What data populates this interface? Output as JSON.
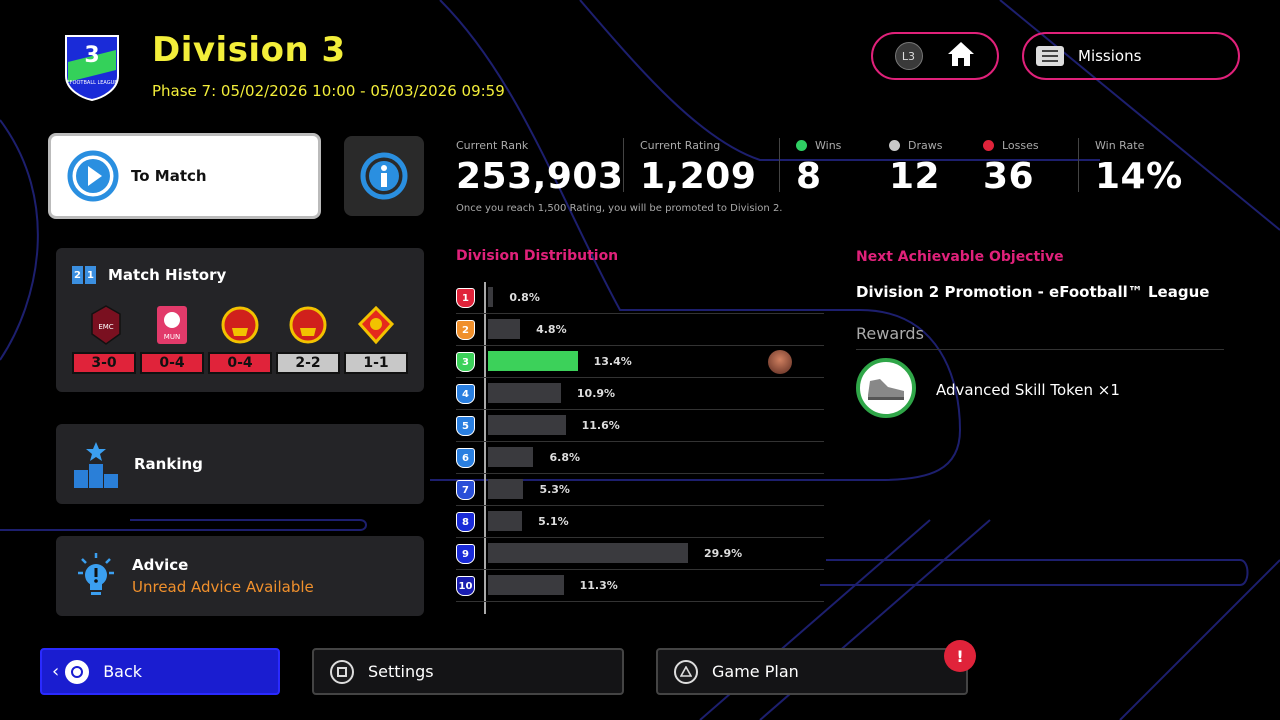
{
  "header": {
    "division": "Division 3",
    "phase": "Phase 7: 05/02/2026 10:00 - 05/03/2026 09:59",
    "logo_number": "3",
    "logo_text": "EFOOTBALL LEAGUE",
    "home_label": "L3",
    "missions_label": "Missions"
  },
  "to_match": {
    "label": "To Match"
  },
  "match_history": {
    "title": "Match History",
    "scores": [
      {
        "score": "3-0",
        "result": "loss"
      },
      {
        "score": "0-4",
        "result": "loss"
      },
      {
        "score": "0-4",
        "result": "loss"
      },
      {
        "score": "2-2",
        "result": "draw"
      },
      {
        "score": "1-1",
        "result": "draw"
      }
    ],
    "crest_texts": [
      "EMC",
      "MUN"
    ]
  },
  "ranking": {
    "label": "Ranking"
  },
  "advice": {
    "title": "Advice",
    "subtitle": "Unread Advice Available"
  },
  "stats": {
    "rank_label": "Current Rank",
    "rank": "253,903",
    "rating_label": "Current Rating",
    "rating": "1,209",
    "wins_label": "Wins",
    "wins": "8",
    "draws_label": "Draws",
    "draws": "12",
    "losses_label": "Losses",
    "losses": "36",
    "winrate_label": "Win Rate",
    "winrate": "14%",
    "note": "Once you reach 1,500 Rating, you will be promoted to Division 2.",
    "colors": {
      "wins": "#2fcf63",
      "draws": "#c8c8c8",
      "losses": "#e0233a"
    }
  },
  "distribution": {
    "title": "Division Distribution",
    "current_division": 3
  },
  "chart_data": {
    "type": "bar",
    "categories": [
      "1",
      "2",
      "3",
      "4",
      "5",
      "6",
      "7",
      "8",
      "9",
      "10"
    ],
    "values": [
      0.8,
      4.8,
      13.4,
      10.9,
      11.6,
      6.8,
      5.3,
      5.1,
      29.9,
      11.3
    ],
    "labels": [
      "0.8%",
      "4.8%",
      "13.4%",
      "10.9%",
      "11.6%",
      "6.8%",
      "5.3%",
      "5.1%",
      "29.9%",
      "11.3%"
    ],
    "orientation": "horizontal",
    "highlight_index": 2,
    "highlight_color": "#3cd15a"
  },
  "objective": {
    "title": "Next Achievable Objective",
    "name": "Division 2 Promotion - eFootball™ League",
    "rewards_label": "Rewards",
    "reward_name": "Advanced Skill Token ×1"
  },
  "footer": {
    "back": "Back",
    "settings": "Settings",
    "game_plan": "Game Plan",
    "alert": "!"
  }
}
